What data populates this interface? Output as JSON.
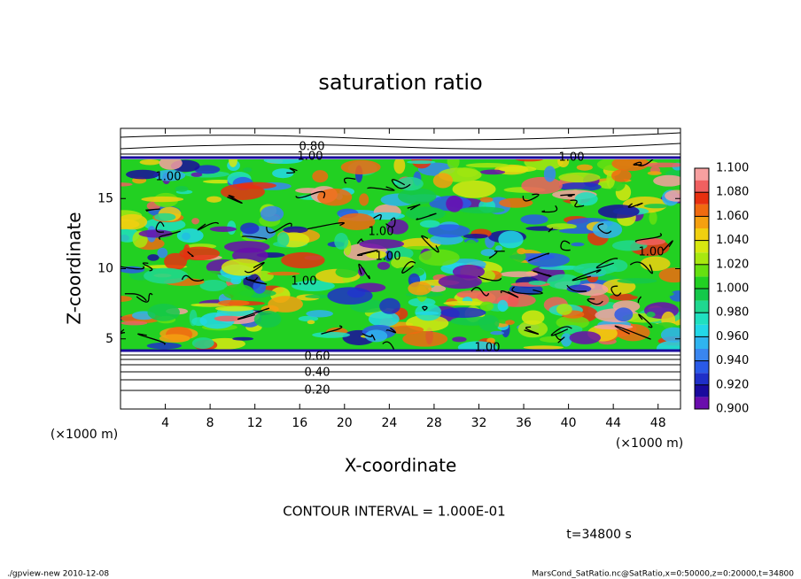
{
  "chart_data": {
    "type": "contour",
    "title": "saturation ratio",
    "xlabel": "X-coordinate",
    "ylabel": "Z-coordinate",
    "x_unit": "(×1000 m)",
    "y_unit": "(×1000 m)",
    "xlim": [
      0,
      50
    ],
    "xticks": [
      4,
      8,
      12,
      16,
      20,
      24,
      28,
      32,
      36,
      40,
      44,
      48
    ],
    "ylim": [
      0,
      20
    ],
    "yticks": [
      5,
      10,
      15
    ],
    "contour_labels": [
      "0.80",
      "1.00",
      "1.00",
      "1.00",
      "1.00",
      "1.00",
      "1.00",
      "1.00",
      "1.00",
      "0.60",
      "0.40",
      "0.20"
    ],
    "colorbar": {
      "clim": [
        0.9,
        1.1
      ],
      "levels": [
        0.9,
        0.91,
        0.92,
        0.93,
        0.94,
        0.95,
        0.96,
        0.97,
        0.98,
        0.99,
        1.0,
        1.01,
        1.02,
        1.03,
        1.04,
        1.05,
        1.06,
        1.07,
        1.08,
        1.09,
        1.1
      ],
      "colors": [
        "#6a0dad",
        "#1a0a9e",
        "#1f2fc8",
        "#2a5ae8",
        "#3a86f0",
        "#2fb4f0",
        "#22d8e8",
        "#20e0c0",
        "#20d890",
        "#14c84a",
        "#22d022",
        "#66e010",
        "#a8e810",
        "#d8e810",
        "#f0d010",
        "#f5a010",
        "#f06a10",
        "#e83010",
        "#f06060",
        "#f7a0a0"
      ],
      "ticks": [
        {
          "value": 0.9,
          "label": "0.900"
        },
        {
          "value": 0.92,
          "label": "0.920"
        },
        {
          "value": 0.94,
          "label": "0.940"
        },
        {
          "value": 0.96,
          "label": "0.960"
        },
        {
          "value": 0.98,
          "label": "0.980"
        },
        {
          "value": 1.0,
          "label": "1.000"
        },
        {
          "value": 1.02,
          "label": "1.020"
        },
        {
          "value": 1.04,
          "label": "1.040"
        },
        {
          "value": 1.06,
          "label": "1.060"
        },
        {
          "value": 1.08,
          "label": "1.080"
        },
        {
          "value": 1.1,
          "label": "1.100"
        }
      ]
    },
    "contour_interval": "CONTOUR INTERVAL = 1.000E-01",
    "time": "t=34800 s",
    "footer_left": "./gpview-new  2010-12-08",
    "footer_right": "MarsCond_SatRatio.nc@SatRatio,x=0:50000,z=0:20000,t=34800"
  }
}
